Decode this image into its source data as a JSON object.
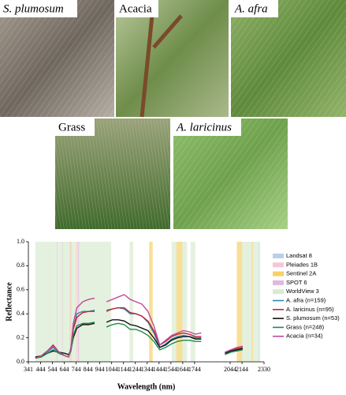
{
  "photos": [
    {
      "label": "S. plumosum"
    },
    {
      "label": "Acacia"
    },
    {
      "label": "A. afra"
    },
    {
      "label": "Grass"
    },
    {
      "label": "A. laricinus"
    }
  ],
  "chart_data": {
    "type": "line",
    "x_label": "Wavelength (nm)",
    "y_label": "Reflectance",
    "xlim": [
      341,
      2330
    ],
    "ylim": [
      0,
      1
    ],
    "xticks": [
      341,
      444,
      544,
      644,
      744,
      844,
      944,
      1044,
      1144,
      1244,
      1344,
      1444,
      1544,
      1644,
      1744,
      2044,
      2144,
      2330
    ],
    "yticks": [
      {
        "value": 0,
        "label": "0.0"
      },
      0.2,
      0.4,
      0.6,
      0.8,
      {
        "value": 1,
        "label": "1.0"
      }
    ],
    "legend": "right",
    "sensors": [
      {
        "name": "Landsat 8",
        "color": "#a9c4e4",
        "bands": [
          [
            435,
            451
          ],
          [
            452,
            512
          ],
          [
            533,
            590
          ],
          [
            636,
            673
          ],
          [
            851,
            879
          ],
          [
            1363,
            1384
          ],
          [
            1566,
            1651
          ],
          [
            2107,
            2294
          ]
        ]
      },
      {
        "name": "Pleiades 1B",
        "color": "#f3b8c8",
        "bands": [
          [
            430,
            550
          ],
          [
            500,
            620
          ],
          [
            590,
            710
          ],
          [
            740,
            940
          ]
        ]
      },
      {
        "name": "Sentinel 2A",
        "color": "#f5c542",
        "bands": [
          [
            458,
            523
          ],
          [
            543,
            578
          ],
          [
            650,
            680
          ],
          [
            698,
            713
          ],
          [
            733,
            748
          ],
          [
            773,
            793
          ],
          [
            785,
            900
          ],
          [
            855,
            875
          ],
          [
            1360,
            1390
          ],
          [
            1565,
            1655
          ],
          [
            2100,
            2280
          ]
        ]
      },
      {
        "name": "SPOT 6",
        "color": "#d8a6d8",
        "bands": [
          [
            455,
            525
          ],
          [
            530,
            590
          ],
          [
            625,
            695
          ],
          [
            760,
            890
          ]
        ]
      },
      {
        "name": "WorldView 3",
        "color": "#cfe6c4",
        "bands": [
          [
            400,
            450
          ],
          [
            450,
            510
          ],
          [
            510,
            580
          ],
          [
            585,
            625
          ],
          [
            630,
            690
          ],
          [
            705,
            745
          ],
          [
            770,
            895
          ],
          [
            860,
            1040
          ],
          [
            1195,
            1225
          ],
          [
            1550,
            1590
          ],
          [
            1640,
            1680
          ],
          [
            1710,
            1750
          ],
          [
            2145,
            2185
          ],
          [
            2185,
            2225
          ],
          [
            2235,
            2285
          ]
        ]
      }
    ],
    "x": [
      400,
      450,
      500,
      550,
      600,
      650,
      680,
      700,
      720,
      750,
      800,
      850,
      900,
      950,
      1000,
      1050,
      1100,
      1150,
      1200,
      1250,
      1300,
      1350,
      1400,
      1450,
      1500,
      1550,
      1600,
      1650,
      1700,
      1750,
      1800,
      1900,
      2000,
      2050,
      2100,
      2150
    ],
    "series": [
      {
        "name": "A. afra (n=159)",
        "color": "#2b8cb3",
        "values": [
          0.03,
          0.05,
          0.08,
          0.12,
          0.07,
          0.05,
          0.04,
          0.1,
          0.28,
          0.4,
          0.42,
          0.42,
          0.43,
          null,
          0.43,
          0.44,
          0.45,
          0.44,
          0.4,
          0.4,
          0.38,
          0.33,
          0.24,
          0.12,
          0.15,
          0.19,
          0.21,
          0.22,
          0.21,
          0.2,
          0.2,
          null,
          0.07,
          0.09,
          0.1,
          0.11
        ]
      },
      {
        "name": "A. laricinus (n=95)",
        "color": "#c0283a",
        "values": [
          0.03,
          0.05,
          0.09,
          0.14,
          0.08,
          0.05,
          0.04,
          0.1,
          0.27,
          0.37,
          0.41,
          0.42,
          0.42,
          null,
          0.42,
          0.44,
          0.45,
          0.45,
          0.41,
          0.4,
          0.38,
          0.34,
          0.26,
          0.14,
          0.17,
          0.21,
          0.23,
          0.24,
          0.23,
          0.21,
          0.21,
          null,
          0.08,
          0.1,
          0.11,
          0.12
        ]
      },
      {
        "name": "S. plumosum (n=53)",
        "color": "#111111",
        "values": [
          0.04,
          0.05,
          0.07,
          0.09,
          0.08,
          0.07,
          0.06,
          0.1,
          0.2,
          0.28,
          0.31,
          0.31,
          0.32,
          null,
          0.33,
          0.35,
          0.35,
          0.34,
          0.31,
          0.3,
          0.28,
          0.26,
          0.2,
          0.12,
          0.14,
          0.18,
          0.2,
          0.21,
          0.21,
          0.19,
          0.19,
          null,
          0.07,
          0.09,
          0.1,
          0.11
        ]
      },
      {
        "name": "Grass (n=248)",
        "color": "#1f8a4c",
        "values": [
          0.03,
          0.04,
          0.07,
          0.1,
          0.07,
          0.05,
          0.04,
          0.09,
          0.22,
          0.3,
          0.32,
          0.32,
          0.33,
          null,
          0.29,
          0.31,
          0.32,
          0.31,
          0.27,
          0.27,
          0.25,
          0.22,
          0.17,
          0.1,
          0.12,
          0.15,
          0.17,
          0.18,
          0.18,
          0.17,
          0.17,
          null,
          0.06,
          0.08,
          0.09,
          0.1
        ]
      },
      {
        "name": "Acacia (n=34)",
        "color": "#c04a9a",
        "values": [
          0.03,
          0.05,
          0.09,
          0.13,
          0.08,
          0.05,
          0.04,
          0.12,
          0.32,
          0.45,
          0.5,
          0.52,
          0.53,
          null,
          0.5,
          0.52,
          0.54,
          0.56,
          0.52,
          0.5,
          0.48,
          0.42,
          0.3,
          0.14,
          0.18,
          0.22,
          0.24,
          0.26,
          0.25,
          0.23,
          0.24,
          null,
          0.08,
          0.1,
          0.12,
          0.13
        ]
      }
    ]
  }
}
